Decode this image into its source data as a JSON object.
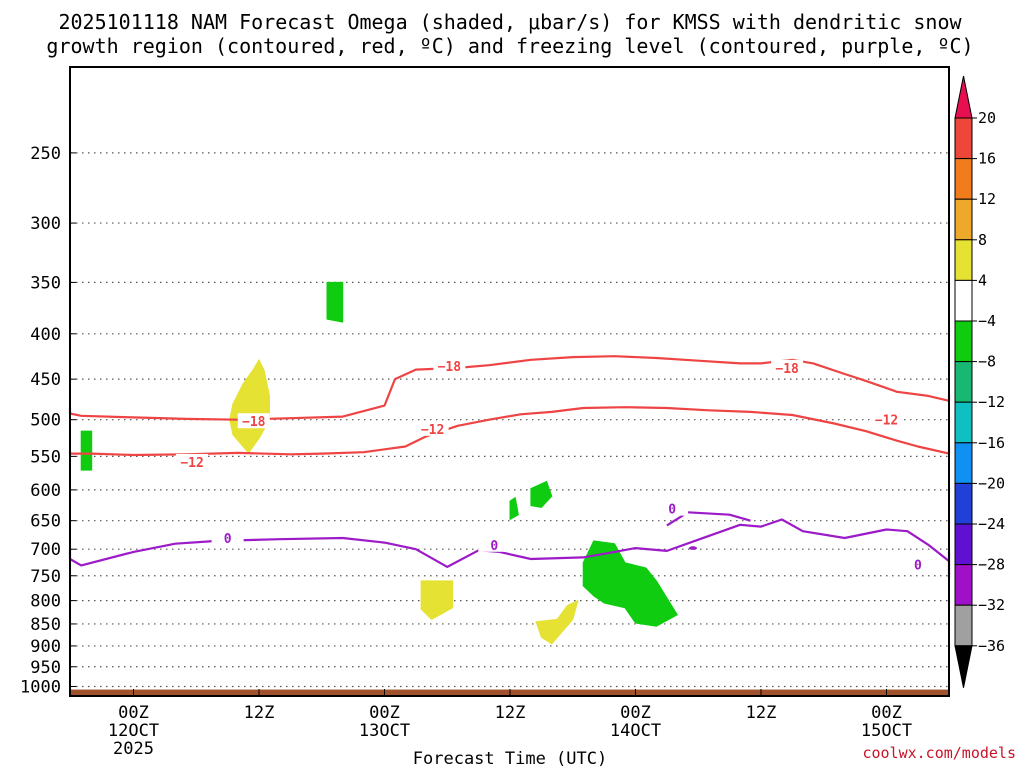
{
  "chart_data": {
    "type": "time-height",
    "title": [
      "2025101118 NAM Forecast Omega (shaded, μbar/s) for KMSS with dendritic snow",
      "growth region (contoured, red, ºC) and freezing level (contoured, purple, ºC)"
    ],
    "xlabel": "Forecast Time (UTC)",
    "ylabel": "",
    "y_unit": "hPa",
    "ylim": [
      1025,
      200
    ],
    "xlim": [
      -12,
      58
    ],
    "y_ticks": [
      250,
      300,
      350,
      400,
      450,
      500,
      550,
      600,
      650,
      700,
      750,
      800,
      850,
      900,
      950,
      1000
    ],
    "x_ticks": [
      {
        "hour": 0,
        "label": "00Z",
        "date": "12OCT",
        "year": "2025"
      },
      {
        "hour": 12,
        "label": "12Z",
        "date": "",
        "year": ""
      },
      {
        "hour": 24,
        "label": "00Z",
        "date": "13OCT",
        "year": ""
      },
      {
        "hour": 36,
        "label": "12Z",
        "date": "",
        "year": ""
      },
      {
        "hour": 48,
        "label": "00Z",
        "date": "14OCT",
        "year": ""
      },
      {
        "hour": 60,
        "label": "12Z",
        "date": "",
        "year": ""
      },
      {
        "hour": 72,
        "label": "00Z",
        "date": "15OCT",
        "year": ""
      }
    ],
    "grid": "dotted horizontal at each pressure level",
    "colorbar": {
      "labels": [
        "20",
        "16",
        "12",
        "8",
        "4",
        "−4",
        "−8",
        "−12",
        "−16",
        "−20",
        "−24",
        "−28",
        "−32",
        "−36"
      ],
      "colors": [
        "#e60f50",
        "#ee4638",
        "#f07c1c",
        "#eea82a",
        "#e6e234",
        "#ffffff",
        "#10cc10",
        "#18b872",
        "#10c0c0",
        "#1090f0",
        "#2040d8",
        "#6010d0",
        "#a010c8",
        "#a0a0a0",
        "#000000"
      ]
    },
    "contours": {
      "minus18": {
        "label": "−18",
        "color": "#ee4444",
        "points": [
          [
            -12,
            485
          ],
          [
            -8,
            492
          ],
          [
            -5,
            495
          ],
          [
            0,
            497
          ],
          [
            5,
            499
          ],
          [
            10,
            500
          ],
          [
            15,
            498
          ],
          [
            20,
            496
          ],
          [
            24,
            482
          ],
          [
            25,
            450
          ],
          [
            27,
            439
          ],
          [
            31,
            437
          ],
          [
            34,
            434
          ],
          [
            38,
            428
          ],
          [
            42,
            425
          ],
          [
            46,
            424
          ],
          [
            50,
            426
          ],
          [
            54,
            429
          ],
          [
            58,
            432
          ],
          [
            60,
            432
          ],
          [
            63,
            428
          ],
          [
            65,
            432
          ],
          [
            68,
            444
          ],
          [
            70,
            452
          ],
          [
            73,
            465
          ],
          [
            76,
            470
          ],
          [
            79,
            476
          ],
          [
            80,
            470
          ],
          [
            82,
            468
          ],
          [
            83,
            472
          ]
        ]
      },
      "minus12": {
        "label": "−12",
        "color": "#ee4444",
        "points": [
          [
            -12,
            542
          ],
          [
            -8,
            546
          ],
          [
            -4,
            546
          ],
          [
            0,
            548
          ],
          [
            5,
            547
          ],
          [
            10,
            545
          ],
          [
            15,
            547
          ],
          [
            18,
            546
          ],
          [
            22,
            544
          ],
          [
            26,
            536
          ],
          [
            28,
            522
          ],
          [
            31,
            508
          ],
          [
            34,
            500
          ],
          [
            37,
            493
          ],
          [
            40,
            490
          ],
          [
            43,
            485
          ],
          [
            47,
            484
          ],
          [
            51,
            485
          ],
          [
            55,
            488
          ],
          [
            59,
            490
          ],
          [
            63,
            494
          ],
          [
            67,
            505
          ],
          [
            70,
            515
          ],
          [
            73,
            528
          ],
          [
            75,
            536
          ],
          [
            78,
            546
          ],
          [
            80,
            544
          ],
          [
            82,
            538
          ],
          [
            83,
            536
          ]
        ]
      },
      "zero": {
        "label": "0",
        "color": "#9c1ac8",
        "points": [
          [
            -12,
            715
          ],
          [
            -10,
            700
          ],
          [
            -8,
            718
          ],
          [
            -5,
            730
          ],
          [
            0,
            705
          ],
          [
            4,
            690
          ],
          [
            8,
            685
          ],
          [
            14,
            682
          ],
          [
            20,
            680
          ],
          [
            24,
            688
          ],
          [
            27,
            700
          ],
          [
            30,
            733
          ],
          [
            33,
            702
          ],
          [
            35,
            705
          ],
          [
            38,
            718
          ],
          [
            43,
            715
          ],
          [
            46,
            705
          ],
          [
            48,
            698
          ],
          [
            51,
            703
          ],
          [
            54,
            683
          ],
          [
            58,
            657
          ],
          [
            60,
            660
          ],
          [
            62,
            648
          ],
          [
            64,
            668
          ],
          [
            68,
            680
          ],
          [
            72,
            665
          ],
          [
            74,
            668
          ],
          [
            76,
            692
          ],
          [
            78,
            722
          ],
          [
            80,
            705
          ],
          [
            82,
            718
          ],
          [
            84,
            752
          ]
        ]
      },
      "zero_fragment": {
        "color": "#9c1ac8",
        "points": [
          [
            51,
            658
          ],
          [
            53,
            636
          ],
          [
            57,
            640
          ],
          [
            59,
            650
          ]
        ]
      }
    },
    "omega_regions": [
      {
        "name": "upward-motion-450-550",
        "value": "4 to 8",
        "color": "#e6e234",
        "points": [
          [
            9.5,
            480
          ],
          [
            10.5,
            455
          ],
          [
            11.5,
            438
          ],
          [
            12,
            428
          ],
          [
            12.5,
            440
          ],
          [
            13,
            470
          ],
          [
            13,
            500
          ],
          [
            12,
            525
          ],
          [
            11,
            545
          ],
          [
            9.5,
            520
          ],
          [
            9.2,
            500
          ]
        ]
      },
      {
        "name": "descent-500-570",
        "value": "-4 to -8",
        "color": "#10cc10",
        "points": [
          [
            -5,
            515
          ],
          [
            -4,
            515
          ],
          [
            -4,
            570
          ],
          [
            -5,
            570
          ]
        ]
      },
      {
        "name": "descent-350-390",
        "value": "-4 to -8",
        "color": "#10cc10",
        "points": [
          [
            18.5,
            350
          ],
          [
            20,
            350
          ],
          [
            20,
            388
          ],
          [
            18.5,
            385
          ]
        ]
      },
      {
        "name": "upward-motion-760-840",
        "value": "4 to 8",
        "color": "#e6e234",
        "points": [
          [
            27.5,
            760
          ],
          [
            30.5,
            760
          ],
          [
            30.5,
            815
          ],
          [
            28.5,
            840
          ],
          [
            27.5,
            818
          ]
        ]
      },
      {
        "name": "descent-615-650",
        "value": "-4 to -8",
        "color": "#10cc10",
        "points": [
          [
            36,
            618
          ],
          [
            36.5,
            612
          ],
          [
            36.8,
            640
          ],
          [
            36,
            648
          ]
        ]
      },
      {
        "name": "descent-590-640",
        "value": "-4 to -8",
        "color": "#10cc10",
        "points": [
          [
            38,
            598
          ],
          [
            39.5,
            587
          ],
          [
            40,
            610
          ],
          [
            39,
            628
          ],
          [
            38,
            625
          ]
        ]
      },
      {
        "name": "upward-motion-810-890",
        "value": "4 to 8",
        "color": "#e6e234",
        "points": [
          [
            38.5,
            845
          ],
          [
            40.5,
            840
          ],
          [
            41.5,
            810
          ],
          [
            42.5,
            800
          ],
          [
            42,
            840
          ],
          [
            40,
            895
          ],
          [
            39,
            880
          ]
        ]
      },
      {
        "name": "descent-680-860",
        "value": "-4 to -8",
        "color": "#10cc10",
        "points": [
          [
            44,
            685
          ],
          [
            46,
            690
          ],
          [
            47,
            725
          ],
          [
            49,
            735
          ],
          [
            50,
            760
          ],
          [
            52,
            830
          ],
          [
            50,
            855
          ],
          [
            48,
            848
          ],
          [
            47,
            815
          ],
          [
            45,
            805
          ],
          [
            44,
            790
          ],
          [
            43,
            770
          ],
          [
            43,
            725
          ]
        ]
      },
      {
        "name": "descent-830-975",
        "value": "-4 to -8",
        "color": "#10cc10",
        "points": [
          [
            78,
            900
          ],
          [
            79,
            870
          ],
          [
            80,
            848
          ],
          [
            82,
            830
          ],
          [
            83,
            832
          ],
          [
            83,
            975
          ],
          [
            80,
            972
          ],
          [
            78,
            955
          ]
        ]
      },
      {
        "name": "descent-stronger-870-960",
        "value": "-8 to -12",
        "color": "#18b872",
        "points": [
          [
            82,
            870
          ],
          [
            83,
            865
          ],
          [
            83,
            960
          ],
          [
            82,
            945
          ]
        ]
      }
    ],
    "terrain": {
      "color": "#a0522d",
      "top_hpa": 1008
    }
  },
  "labels": {
    "title_line1": "2025101118 NAM Forecast Omega (shaded, μbar/s) for KMSS with dendritic snow",
    "title_line2": "growth region (contoured, red, ºC) and freezing level (contoured, purple, ºC)",
    "xaxis_title": "Forecast Time (UTC)",
    "credit": "coolwx.com/models"
  }
}
